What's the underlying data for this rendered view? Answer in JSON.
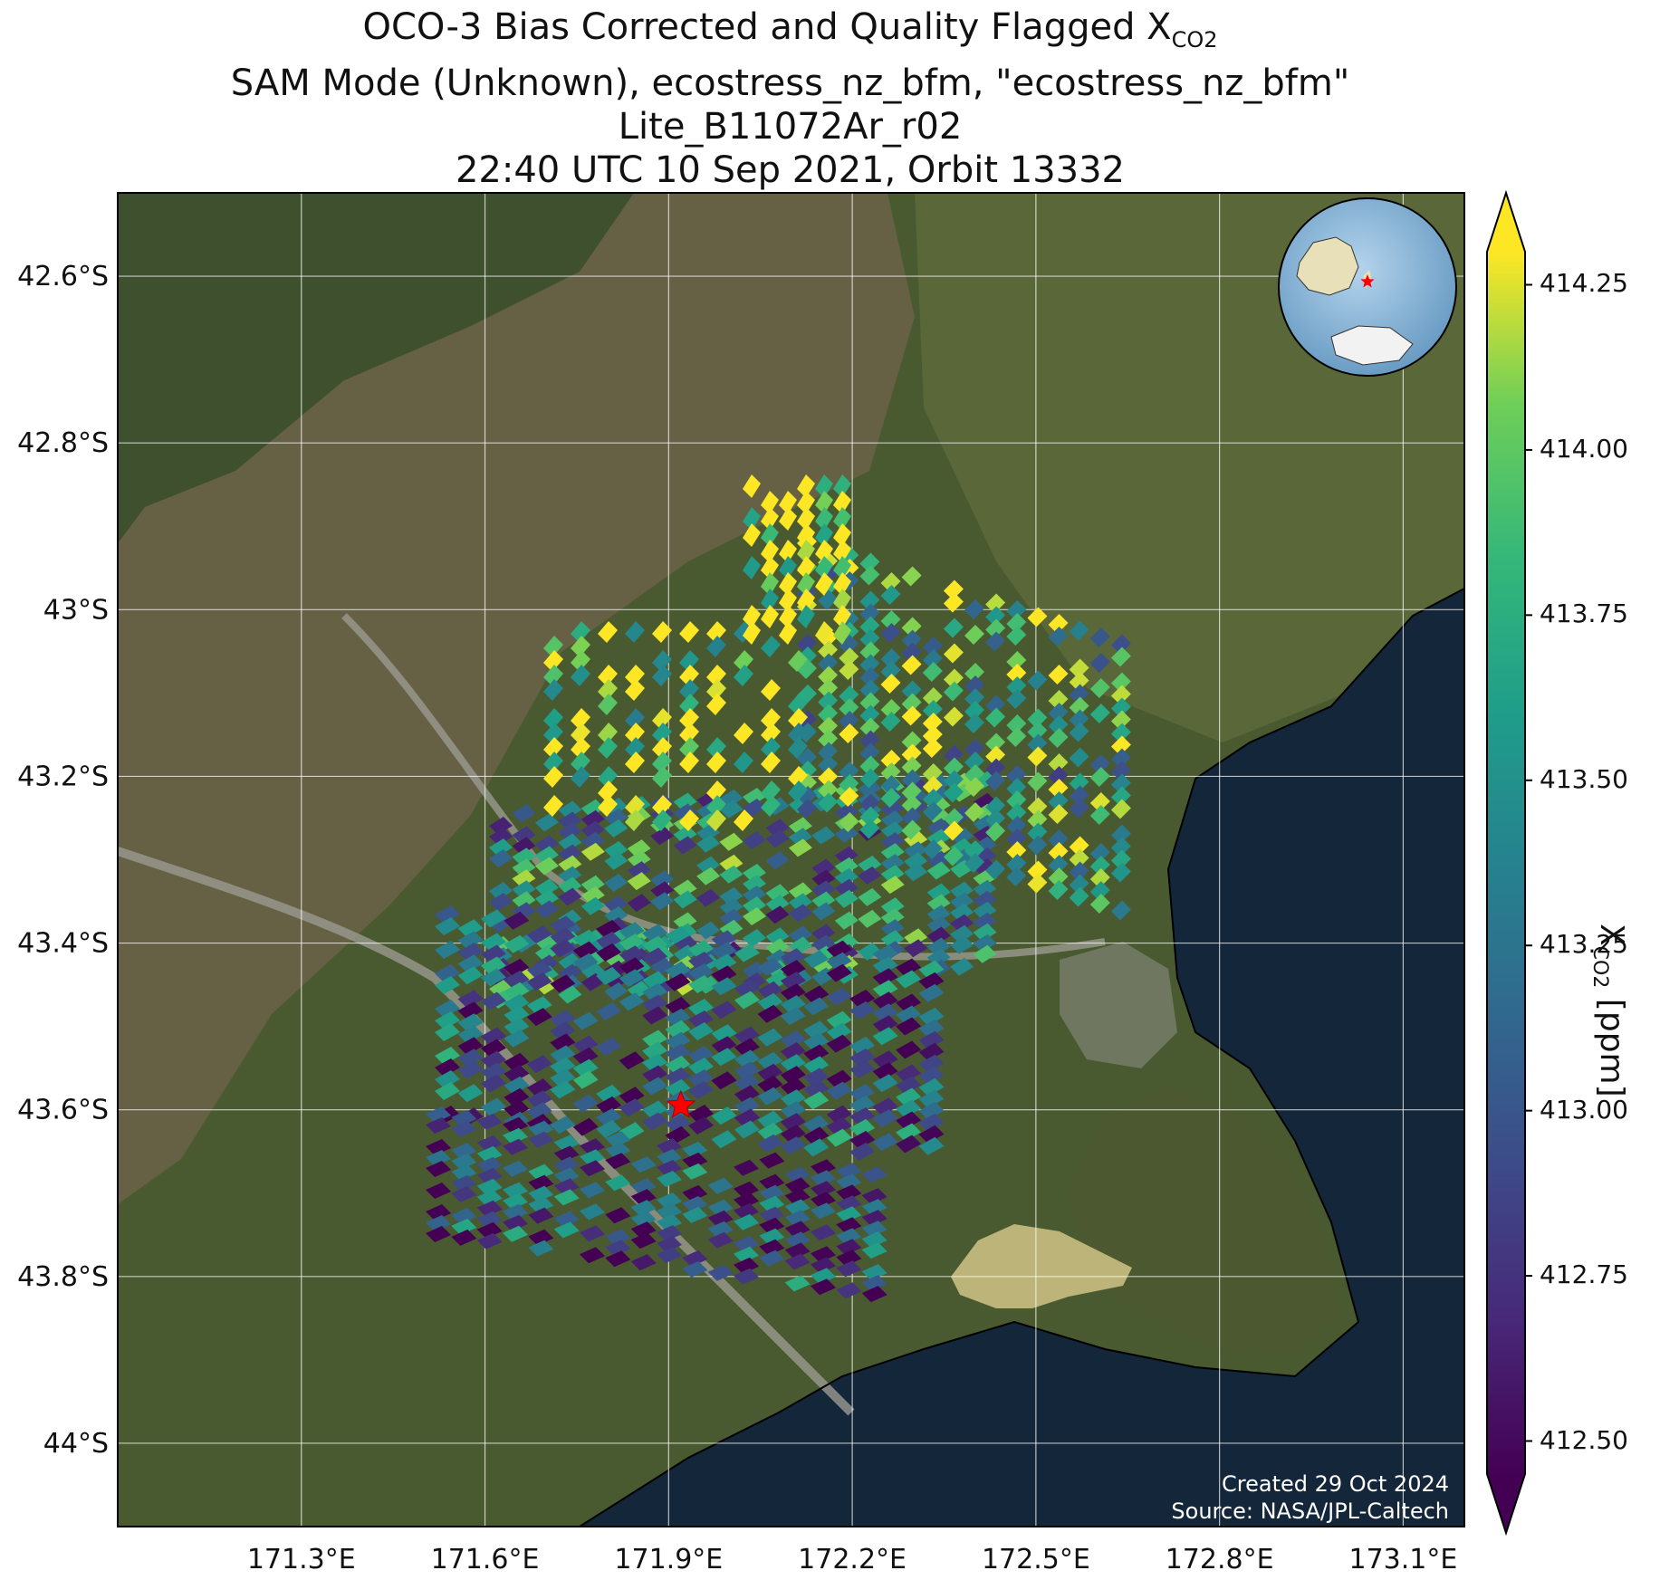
{
  "title": {
    "line1_prefix": "OCO-3 Bias Corrected and Quality Flagged X",
    "line1_sub": "CO2",
    "line2": "SAM Mode (Unknown), ecostress_nz_bfm, \"ecostress_nz_bfm\"",
    "line3": "Lite_B11072Ar_r02",
    "line4": "22:40 UTC 10 Sep 2021, Orbit 13332"
  },
  "axes": {
    "lat_ticks": [
      "42.6°S",
      "42.8°S",
      "43°S",
      "43.2°S",
      "43.4°S",
      "43.6°S",
      "43.8°S",
      "44°S"
    ],
    "lon_ticks": [
      "171.3°E",
      "171.6°E",
      "171.9°E",
      "172.2°E",
      "172.5°E",
      "172.8°E",
      "173.1°E"
    ],
    "lat_values": [
      -42.6,
      -42.8,
      -43.0,
      -43.2,
      -43.4,
      -43.6,
      -43.8,
      -44.0
    ],
    "lon_values": [
      171.3,
      171.6,
      171.9,
      172.2,
      172.5,
      172.8,
      173.1
    ],
    "lon_range": [
      171.0,
      173.2
    ],
    "lat_range": [
      -44.1,
      -42.5
    ]
  },
  "colorbar": {
    "label_main": "X",
    "label_sub": "CO2",
    "label_units": " [ppm]",
    "ticks": [
      "414.25",
      "414.00",
      "413.75",
      "413.50",
      "413.25",
      "413.00",
      "412.75",
      "412.50"
    ],
    "tick_values": [
      414.25,
      414.0,
      413.75,
      413.5,
      413.25,
      413.0,
      412.75,
      412.5
    ],
    "range": [
      412.45,
      414.3
    ],
    "colormap": "viridis",
    "extend": "both"
  },
  "target_marker": {
    "lon": 171.92,
    "lat": -43.595,
    "symbol": "star",
    "color": "#ff0000"
  },
  "credits": {
    "line1": "Created 29 Oct 2024",
    "line2": "Source: NASA/JPL-Caltech"
  },
  "colors": {
    "land": "#4a5a30",
    "sea": "#14263a",
    "lake": "#bdb47a",
    "grid": "#ffffff"
  },
  "inset": {
    "type": "globe",
    "marker_color": "#ff0000"
  }
}
